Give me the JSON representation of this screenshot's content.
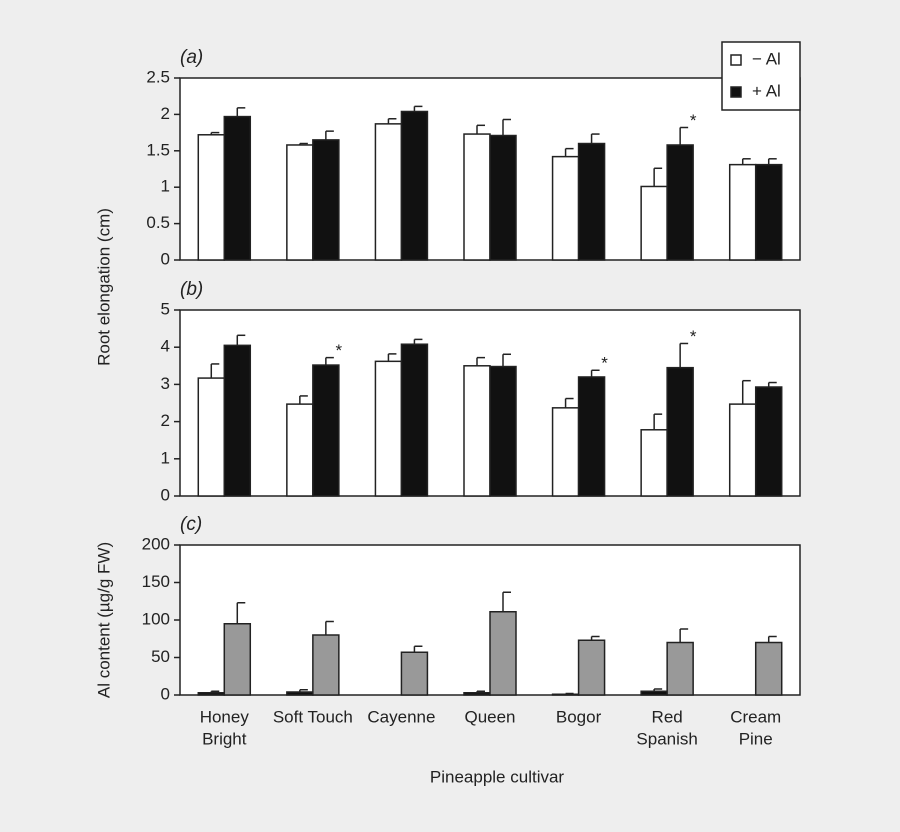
{
  "chart_data": [
    {
      "type": "bar",
      "panel_label": "(a)",
      "ylabel": "Root elongation (cm)",
      "ylim": [
        0,
        2.5
      ],
      "yticks": [
        0,
        0.5,
        1,
        1.5,
        2,
        2.5
      ],
      "series": [
        {
          "name": "− Al",
          "color": "#ffffff",
          "values": [
            1.72,
            1.58,
            1.87,
            1.73,
            1.42,
            1.01,
            1.31
          ],
          "errors": [
            0.03,
            0.02,
            0.07,
            0.12,
            0.11,
            0.25,
            0.08
          ]
        },
        {
          "name": "+ Al",
          "color": "#111111",
          "values": [
            1.97,
            1.65,
            2.04,
            1.71,
            1.6,
            1.58,
            1.31
          ],
          "errors": [
            0.12,
            0.12,
            0.07,
            0.22,
            0.13,
            0.24,
            0.08
          ],
          "annotations": [
            null,
            null,
            null,
            null,
            null,
            "*",
            null
          ]
        }
      ]
    },
    {
      "type": "bar",
      "panel_label": "(b)",
      "ylim": [
        0,
        5
      ],
      "yticks": [
        0,
        1,
        2,
        3,
        4,
        5
      ],
      "series": [
        {
          "color": "#ffffff",
          "values": [
            3.17,
            2.47,
            3.62,
            3.5,
            2.37,
            1.78,
            2.47
          ],
          "errors": [
            0.38,
            0.22,
            0.2,
            0.22,
            0.25,
            0.42,
            0.63
          ]
        },
        {
          "color": "#111111",
          "values": [
            4.05,
            3.52,
            4.08,
            3.48,
            3.2,
            3.45,
            2.93
          ],
          "errors": [
            0.27,
            0.2,
            0.13,
            0.33,
            0.18,
            0.65,
            0.12
          ],
          "annotations": [
            null,
            "*",
            null,
            null,
            "*",
            "*",
            null
          ]
        }
      ]
    },
    {
      "type": "bar",
      "panel_label": "(c)",
      "ylabel": "Al content (µg/g FW)",
      "xlabel": "Pineapple cultivar",
      "categories": [
        [
          "Honey",
          "Bright"
        ],
        [
          "Soft Touch"
        ],
        [
          "Cayenne"
        ],
        [
          "Queen"
        ],
        [
          "Bogor"
        ],
        [
          "Red",
          "Spanish"
        ],
        [
          "Cream",
          "Pine"
        ]
      ],
      "ylim": [
        0,
        200
      ],
      "yticks": [
        0,
        50,
        100,
        150,
        200
      ],
      "series": [
        {
          "color": "#111111",
          "values": [
            3,
            4,
            null,
            3,
            1,
            5,
            null
          ],
          "errors": [
            2,
            3,
            null,
            2,
            1,
            3,
            null
          ]
        },
        {
          "color": "#999999",
          "values": [
            95,
            80,
            57,
            111,
            73,
            70,
            70
          ],
          "errors": [
            28,
            18,
            8,
            26,
            5,
            18,
            8
          ]
        }
      ]
    }
  ]
}
